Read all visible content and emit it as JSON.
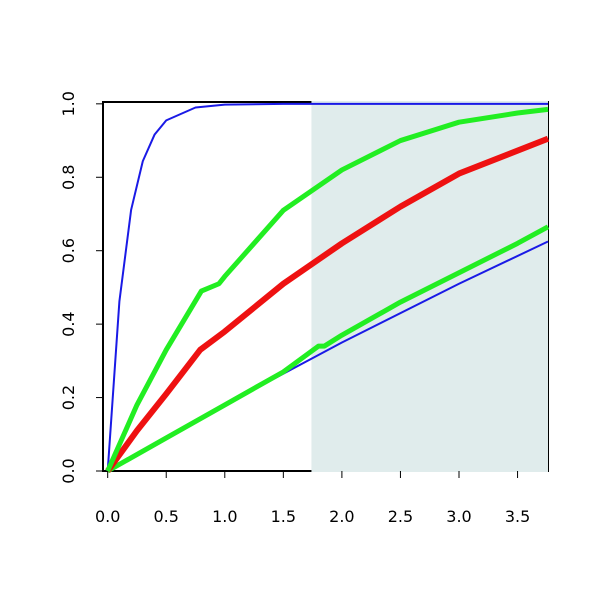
{
  "chart_data": {
    "type": "line",
    "xlim": [
      -0.04,
      3.76
    ],
    "ylim": [
      0,
      1.005
    ],
    "xticks": [
      {
        "value": 0,
        "label": "0.0"
      },
      0.5,
      {
        "value": 1,
        "label": "1.0"
      },
      1.5,
      {
        "value": 2,
        "label": "2.0"
      },
      2.5,
      {
        "value": 3,
        "label": "3.0"
      },
      3.5
    ],
    "yticks": [
      {
        "value": 0,
        "label": "0.0"
      },
      0.2,
      0.4,
      0.6,
      0.8,
      {
        "value": 1,
        "label": "1.0"
      }
    ],
    "shaded_xrange": [
      1.74,
      3.76
    ],
    "shade_color": "#e0ecec",
    "series": [
      {
        "color": "#1a1ae6",
        "width": 2,
        "x": [
          0,
          0.1,
          0.2,
          0.3,
          0.4,
          0.5,
          0.75,
          1,
          1.5,
          2,
          3,
          3.76
        ],
        "values": [
          0,
          0.462,
          0.711,
          0.844,
          0.916,
          0.955,
          0.99,
          0.998,
          1,
          1,
          1,
          1
        ]
      },
      {
        "color": "#1a1ae6",
        "width": 2,
        "x": [
          0,
          1,
          2,
          3,
          3.76
        ],
        "values": [
          0,
          0.18,
          0.35,
          0.51,
          0.625
        ]
      },
      {
        "color": "#22ee22",
        "width": 5,
        "x": [
          0,
          0.5,
          1,
          1.5,
          1.8,
          1.85,
          2,
          2.5,
          3,
          3.5,
          3.76
        ],
        "values": [
          0,
          0.09,
          0.18,
          0.27,
          0.34,
          0.34,
          0.37,
          0.46,
          0.54,
          0.62,
          0.665
        ]
      },
      {
        "color": "#ee1111",
        "width": 6,
        "x": [
          0,
          0.25,
          0.5,
          0.79,
          1,
          1.5,
          2,
          2.5,
          3,
          3.76
        ],
        "values": [
          0,
          0.11,
          0.21,
          0.33,
          0.38,
          0.51,
          0.62,
          0.72,
          0.81,
          0.905
        ]
      },
      {
        "color": "#22ee22",
        "width": 5,
        "x": [
          0,
          0.25,
          0.5,
          0.8,
          0.95,
          1,
          1.5,
          2,
          2.5,
          3,
          3.5,
          3.76
        ],
        "values": [
          0,
          0.18,
          0.33,
          0.49,
          0.51,
          0.53,
          0.71,
          0.82,
          0.9,
          0.95,
          0.975,
          0.985
        ]
      }
    ]
  }
}
